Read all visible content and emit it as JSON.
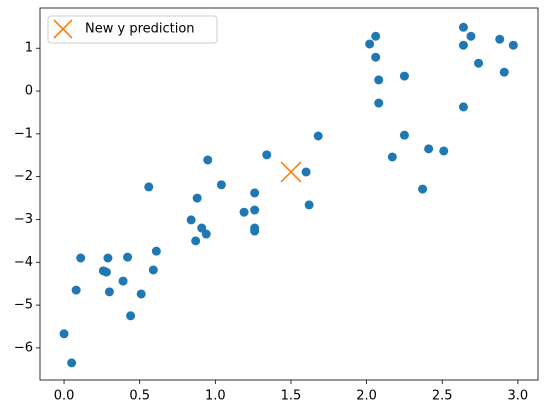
{
  "chart_data": {
    "type": "scatter",
    "series": [
      {
        "color": "#1f77b4",
        "marker": "o",
        "x": [
          0.0,
          0.05,
          0.08,
          0.11,
          0.26,
          0.28,
          0.29,
          0.3,
          0.39,
          0.42,
          0.44,
          0.51,
          0.56,
          0.59,
          0.61,
          0.84,
          0.87,
          0.88,
          0.91,
          0.94,
          0.95,
          1.04,
          1.19,
          1.26,
          1.26,
          1.26,
          1.26,
          1.34,
          1.6,
          1.62,
          1.68,
          2.02,
          2.06,
          2.06,
          2.08,
          2.08,
          2.17,
          2.25,
          2.25,
          2.37,
          2.41,
          2.51,
          2.64,
          2.64,
          2.64,
          2.69,
          2.74,
          2.88,
          2.91,
          2.97
        ],
        "values": [
          -5.67,
          -6.35,
          -4.65,
          -3.9,
          -4.2,
          -4.23,
          -3.9,
          -4.69,
          -4.44,
          -3.88,
          -5.25,
          -4.74,
          -2.24,
          -4.18,
          -3.74,
          -3.01,
          -3.5,
          -2.5,
          -3.2,
          -3.34,
          -1.61,
          -2.19,
          -2.83,
          -2.38,
          -2.78,
          -3.2,
          -3.27,
          -1.49,
          -1.89,
          -2.66,
          -1.05,
          1.1,
          1.28,
          0.79,
          0.26,
          -0.28,
          -1.54,
          0.35,
          -1.03,
          -2.29,
          -1.35,
          -1.4,
          1.49,
          1.07,
          -0.37,
          1.28,
          0.65,
          1.21,
          0.44,
          1.07
        ]
      },
      {
        "name": "New y prediction",
        "color": "#ff7f0e",
        "marker": "x",
        "x": [
          1.5
        ],
        "values": [
          -1.89
        ]
      }
    ],
    "xlim": [
      -0.159,
      3.133
    ],
    "ylim": [
      -6.75,
      1.94
    ],
    "xticks": [
      {
        "value": 0,
        "label": "0.0"
      },
      {
        "value": 0.5,
        "label": "0.5"
      },
      {
        "value": 1,
        "label": "1.0"
      },
      {
        "value": 1.5,
        "label": "1.5"
      },
      {
        "value": 2,
        "label": "2.0"
      },
      {
        "value": 2.5,
        "label": "2.5"
      },
      {
        "value": 3,
        "label": "3.0"
      }
    ],
    "yticks": [
      {
        "value": -6,
        "label": "−6"
      },
      {
        "value": -5,
        "label": "−5"
      },
      {
        "value": -4,
        "label": "−4"
      },
      {
        "value": -3,
        "label": "−3"
      },
      {
        "value": -2,
        "label": "−2"
      },
      {
        "value": -1,
        "label": "−1"
      },
      0,
      1
    ],
    "grid": false,
    "legend": "upper left"
  }
}
